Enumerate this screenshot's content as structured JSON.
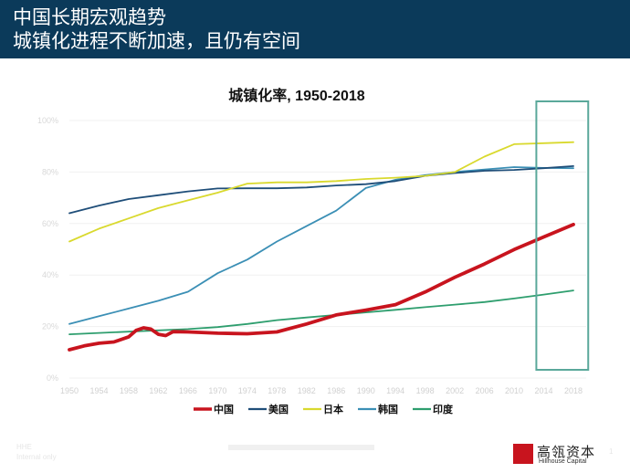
{
  "header": {
    "line1": "中国长期宏观趋势",
    "line2": "城镇化进程不断加速，且仍有空间"
  },
  "chart_data": {
    "type": "line",
    "title": "城镇化率, 1950-2018",
    "xlabel": "",
    "ylabel": "",
    "x": [
      1950,
      1954,
      1958,
      1962,
      1966,
      1970,
      1974,
      1978,
      1982,
      1986,
      1990,
      1994,
      1998,
      2002,
      2006,
      2010,
      2014,
      2018
    ],
    "x_ticks": [
      "1950",
      "1954",
      "1958",
      "1962",
      "1966",
      "1970",
      "1974",
      "1978",
      "1982",
      "1986",
      "1990",
      "1994",
      "1998",
      "2002",
      "2006",
      "2010",
      "2014",
      "2018"
    ],
    "y_ticks": [
      "0%",
      "20%",
      "40%",
      "60%",
      "80%",
      "100%"
    ],
    "ylim": [
      0,
      100
    ],
    "highlight_range": [
      2013,
      2020
    ],
    "series": [
      {
        "name": "中国",
        "color": "#c8141e",
        "points": [
          [
            1950,
            11
          ],
          [
            1952,
            12.5
          ],
          [
            1954,
            13.5
          ],
          [
            1956,
            14
          ],
          [
            1958,
            16
          ],
          [
            1959,
            18.5
          ],
          [
            1960,
            19.5
          ],
          [
            1961,
            19
          ],
          [
            1962,
            17
          ],
          [
            1963,
            16.5
          ],
          [
            1964,
            18
          ],
          [
            1966,
            17.9
          ],
          [
            1970,
            17.4
          ],
          [
            1974,
            17.2
          ],
          [
            1978,
            17.9
          ],
          [
            1982,
            21
          ],
          [
            1986,
            24.5
          ],
          [
            1990,
            26.4
          ],
          [
            1994,
            28.5
          ],
          [
            1998,
            33.4
          ],
          [
            2002,
            39.1
          ],
          [
            2006,
            44.3
          ],
          [
            2010,
            49.9
          ],
          [
            2014,
            54.8
          ],
          [
            2018,
            59.6
          ]
        ]
      },
      {
        "name": "美国",
        "color": "#1f4e79",
        "points": [
          [
            1950,
            64
          ],
          [
            1954,
            67
          ],
          [
            1958,
            69.5
          ],
          [
            1962,
            71
          ],
          [
            1966,
            72.5
          ],
          [
            1970,
            73.6
          ],
          [
            1974,
            73.7
          ],
          [
            1978,
            73.7
          ],
          [
            1982,
            74
          ],
          [
            1986,
            74.8
          ],
          [
            1990,
            75.3
          ],
          [
            1994,
            76.5
          ],
          [
            1998,
            78.5
          ],
          [
            2002,
            79.6
          ],
          [
            2006,
            80.5
          ],
          [
            2010,
            80.8
          ],
          [
            2014,
            81.5
          ],
          [
            2018,
            82.3
          ]
        ]
      },
      {
        "name": "日本",
        "color": "#d9d92e",
        "points": [
          [
            1950,
            53
          ],
          [
            1954,
            58
          ],
          [
            1958,
            62
          ],
          [
            1962,
            66
          ],
          [
            1966,
            69
          ],
          [
            1970,
            72
          ],
          [
            1974,
            75.5
          ],
          [
            1978,
            76
          ],
          [
            1982,
            76
          ],
          [
            1986,
            76.5
          ],
          [
            1990,
            77.3
          ],
          [
            1994,
            77.8
          ],
          [
            1998,
            78.5
          ],
          [
            2002,
            80
          ],
          [
            2006,
            86
          ],
          [
            2010,
            90.8
          ],
          [
            2014,
            91.2
          ],
          [
            2018,
            91.6
          ]
        ]
      },
      {
        "name": "韩国",
        "color": "#3b8fb5",
        "points": [
          [
            1950,
            21
          ],
          [
            1954,
            24
          ],
          [
            1958,
            27
          ],
          [
            1962,
            30
          ],
          [
            1966,
            33.5
          ],
          [
            1970,
            40.7
          ],
          [
            1974,
            46
          ],
          [
            1978,
            53
          ],
          [
            1982,
            59
          ],
          [
            1986,
            65
          ],
          [
            1990,
            73.8
          ],
          [
            1994,
            77
          ],
          [
            1998,
            78.8
          ],
          [
            2002,
            80
          ],
          [
            2006,
            81
          ],
          [
            2010,
            81.9
          ],
          [
            2014,
            81.6
          ],
          [
            2018,
            81.5
          ]
        ]
      },
      {
        "name": "印度",
        "color": "#2e9e6e",
        "points": [
          [
            1950,
            17
          ],
          [
            1954,
            17.5
          ],
          [
            1958,
            18
          ],
          [
            1962,
            18.5
          ],
          [
            1966,
            19
          ],
          [
            1970,
            19.8
          ],
          [
            1974,
            21
          ],
          [
            1978,
            22.5
          ],
          [
            1982,
            23.5
          ],
          [
            1986,
            24.5
          ],
          [
            1990,
            25.5
          ],
          [
            1994,
            26.5
          ],
          [
            1998,
            27.5
          ],
          [
            2002,
            28.5
          ],
          [
            2006,
            29.5
          ],
          [
            2010,
            30.9
          ],
          [
            2014,
            32.4
          ],
          [
            2018,
            34
          ]
        ]
      }
    ]
  },
  "footer": {
    "left_line1": "HHE",
    "left_line2": "Internal only",
    "logo_cn": "高瓴资本",
    "logo_en": "Hillhouse Capital",
    "page_number": "1"
  }
}
